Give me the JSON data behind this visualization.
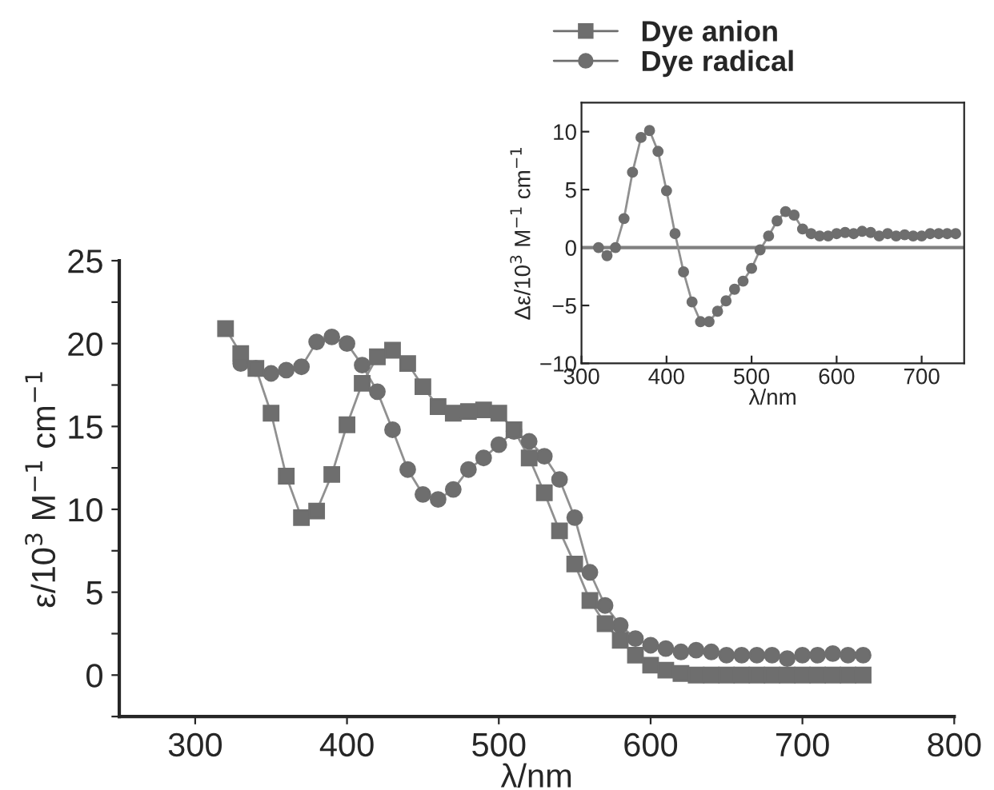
{
  "chart_data": [
    {
      "type": "line",
      "xlabel": "λ/nm",
      "ylabel": "ε/10$^{3}$ M$^{−1}$ cm$^{−1}$",
      "xlim": [
        250,
        800
      ],
      "xticks": [
        300,
        400,
        500,
        600,
        700,
        800
      ],
      "ylim": [
        -2.5,
        25
      ],
      "yticks": [
        {
          "value": -2.5,
          "label": null
        },
        0,
        {
          "value": 2.5,
          "label": null
        },
        5,
        {
          "value": 7.5,
          "label": null
        },
        10,
        {
          "value": 12.5,
          "label": null
        },
        15,
        {
          "value": 17.5,
          "label": null
        },
        20,
        {
          "value": 22.5,
          "label": null
        },
        25
      ],
      "legend": "top right",
      "grid": false,
      "x": [
        320,
        330,
        340,
        350,
        360,
        370,
        380,
        390,
        400,
        410,
        420,
        430,
        440,
        450,
        460,
        470,
        480,
        490,
        500,
        510,
        520,
        530,
        540,
        550,
        560,
        570,
        580,
        590,
        600,
        610,
        620,
        630,
        640,
        650,
        660,
        670,
        680,
        690,
        700,
        710,
        720,
        730,
        740
      ],
      "series": [
        {
          "name": "Dye anion",
          "color": "#6e6e6e",
          "marker": "square",
          "values": [
            20.9,
            19.4,
            18.5,
            15.8,
            12.0,
            9.5,
            9.9,
            12.1,
            15.1,
            17.6,
            19.2,
            19.6,
            18.8,
            17.4,
            16.2,
            15.8,
            15.9,
            16.0,
            15.8,
            14.8,
            13.1,
            11.0,
            8.7,
            6.7,
            4.5,
            3.1,
            2.1,
            1.2,
            0.6,
            0.3,
            0.1,
            0,
            0,
            0,
            0,
            0,
            0,
            0,
            0,
            0,
            0,
            0,
            0
          ]
        },
        {
          "name": "Dye radical",
          "color": "#6e6e6e",
          "marker": "circle",
          "values": [
            null,
            18.8,
            18.5,
            18.2,
            18.4,
            18.6,
            20.1,
            20.4,
            20.0,
            18.7,
            17.1,
            14.8,
            12.4,
            10.9,
            10.6,
            11.2,
            12.4,
            13.1,
            13.9,
            14.7,
            14.1,
            13.2,
            11.8,
            9.5,
            6.2,
            4.2,
            3.0,
            2.2,
            1.8,
            1.6,
            1.4,
            1.5,
            1.4,
            1.2,
            1.2,
            1.2,
            1.2,
            1.0,
            1.2,
            1.2,
            1.3,
            1.2,
            1.2
          ]
        }
      ]
    },
    {
      "type": "line",
      "xlabel": "λ/nm",
      "ylabel": "Δε/10$^{3}$ M$^{−1}$ cm$^{−1}$",
      "xlim": [
        300,
        750
      ],
      "xticks": [
        300,
        400,
        500,
        600,
        700
      ],
      "ylim": [
        -10,
        12.5
      ],
      "yticks": [
        {
          "value": -10,
          "label": "−10"
        },
        {
          "value": -5,
          "label": "−5"
        },
        0,
        5,
        10
      ],
      "grid": false,
      "legend": false,
      "ref_lines": [
        {
          "axis": "y",
          "value": 0,
          "color": "#808080"
        }
      ],
      "x": [
        320,
        330,
        340,
        350,
        360,
        370,
        380,
        390,
        400,
        410,
        420,
        430,
        440,
        450,
        460,
        470,
        480,
        490,
        500,
        510,
        520,
        530,
        540,
        550,
        560,
        570,
        580,
        590,
        600,
        610,
        620,
        630,
        640,
        650,
        660,
        670,
        680,
        690,
        700,
        710,
        720,
        730,
        740
      ],
      "series": [
        {
          "color": "#6e6e6e",
          "marker": "circle",
          "values": [
            0.0,
            -0.7,
            0,
            2.5,
            6.5,
            9.5,
            10.1,
            8.3,
            4.9,
            1.2,
            -2.1,
            -4.7,
            -6.4,
            -6.4,
            -5.5,
            -4.6,
            -3.6,
            -2.9,
            -1.8,
            -0.2,
            1.0,
            2.3,
            3.1,
            2.8,
            1.6,
            1.2,
            1.0,
            1.0,
            1.2,
            1.3,
            1.2,
            1.4,
            1.3,
            1.0,
            1.2,
            1.0,
            1.1,
            1.0,
            1.0,
            1.2,
            1.2,
            1.2,
            1.2
          ]
        }
      ]
    }
  ]
}
